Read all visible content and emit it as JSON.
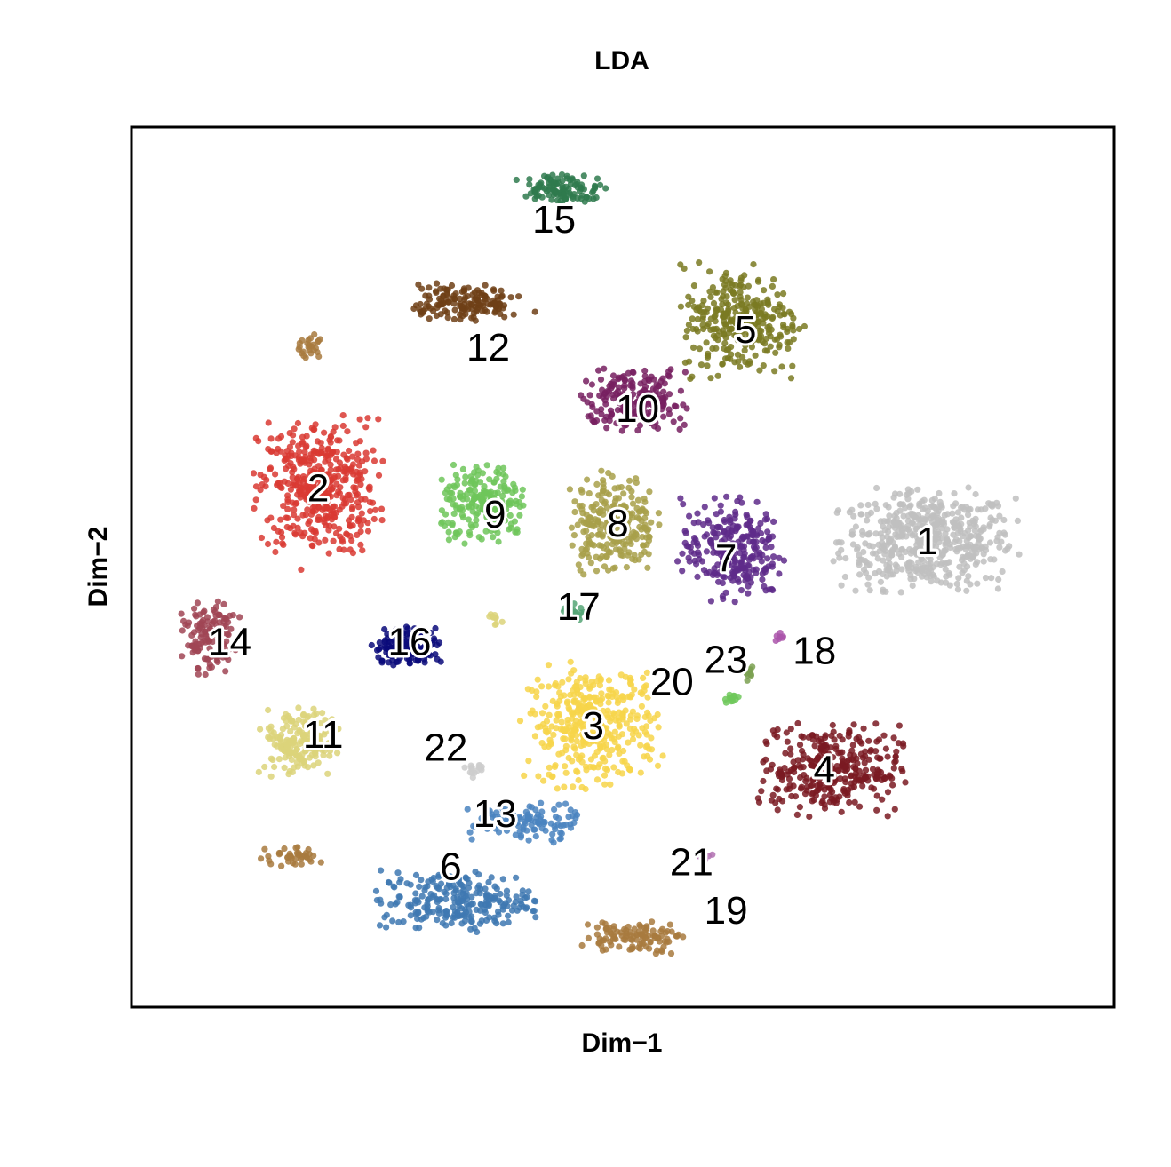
{
  "chart_data": {
    "type": "scatter",
    "title": "LDA",
    "xlabel": "Dim−1",
    "ylabel": "Dim−2",
    "xlim": [
      0,
      100
    ],
    "ylim": [
      0,
      100
    ],
    "grid": false,
    "axes_ticks": false,
    "clusters": [
      {
        "name": "1",
        "color": "#bfbfbf",
        "center": [
          81.0,
          53.0
        ],
        "spread": [
          8.0,
          5.0
        ],
        "n": 520
      },
      {
        "name": "2",
        "color": "#d93a32",
        "center": [
          19.0,
          59.0
        ],
        "spread": [
          5.5,
          7.0
        ],
        "n": 420
      },
      {
        "name": "3",
        "color": "#f7d54a",
        "center": [
          47.0,
          32.0
        ],
        "spread": [
          6.0,
          6.0
        ],
        "n": 380
      },
      {
        "name": "4",
        "color": "#7a1a22",
        "center": [
          71.0,
          27.0
        ],
        "spread": [
          6.5,
          4.5
        ],
        "n": 320
      },
      {
        "name": "5",
        "color": "#7a7a22",
        "center": [
          62.0,
          78.0
        ],
        "spread": [
          5.5,
          5.5
        ],
        "n": 300
      },
      {
        "name": "6",
        "color": "#3e78b2",
        "center": [
          33.0,
          12.0
        ],
        "spread": [
          7.0,
          3.0
        ],
        "n": 240
      },
      {
        "name": "7",
        "color": "#5e2a8a",
        "center": [
          61.0,
          52.0
        ],
        "spread": [
          4.5,
          5.0
        ],
        "n": 260
      },
      {
        "name": "8",
        "color": "#a8a04a",
        "center": [
          49.0,
          55.0
        ],
        "spread": [
          4.0,
          5.0
        ],
        "n": 240
      },
      {
        "name": "9",
        "color": "#6fc55a",
        "center": [
          36.0,
          57.0
        ],
        "spread": [
          4.0,
          4.0
        ],
        "n": 200
      },
      {
        "name": "10",
        "color": "#772060",
        "center": [
          51.0,
          69.0
        ],
        "spread": [
          5.0,
          3.0
        ],
        "n": 200
      },
      {
        "name": "11",
        "color": "#dcd47a",
        "center": [
          17.0,
          30.0
        ],
        "spread": [
          3.5,
          3.5
        ],
        "n": 170
      },
      {
        "name": "12",
        "color": "#6e3f16",
        "center": [
          34.0,
          80.0
        ],
        "spread": [
          5.0,
          2.0
        ],
        "n": 150
      },
      {
        "name": "13",
        "color": "#4a84c0",
        "center": [
          40.0,
          21.0
        ],
        "spread": [
          5.0,
          2.0
        ],
        "n": 110
      },
      {
        "name": "14",
        "color": "#a04555",
        "center": [
          8.0,
          42.0
        ],
        "spread": [
          2.5,
          3.5
        ],
        "n": 120
      },
      {
        "name": "15",
        "color": "#2f7a4e",
        "center": [
          44.0,
          93.0
        ],
        "spread": [
          4.0,
          1.5
        ],
        "n": 110
      },
      {
        "name": "16",
        "color": "#0a0a7a",
        "center": [
          28.0,
          41.0
        ],
        "spread": [
          3.0,
          2.0
        ],
        "n": 140
      },
      {
        "name": "17",
        "color": "#55a575",
        "center": [
          45.0,
          45.0
        ],
        "spread": [
          1.0,
          0.8
        ],
        "n": 20
      },
      {
        "name": "18",
        "color": "#aa55aa",
        "center": [
          66.0,
          42.0
        ],
        "spread": [
          0.5,
          0.6
        ],
        "n": 8
      },
      {
        "name": "19",
        "color": "#a87a3e",
        "center": [
          51.0,
          8.0
        ],
        "spread": [
          4.5,
          1.6
        ],
        "n": 110
      },
      {
        "name": "20",
        "color": "#6ec85a",
        "center": [
          61.0,
          35.0
        ],
        "spread": [
          0.8,
          0.6
        ],
        "n": 12
      },
      {
        "name": "21",
        "color": "#b070b0",
        "center": [
          58.0,
          17.0
        ],
        "spread": [
          1.0,
          0.8
        ],
        "n": 6
      },
      {
        "name": "22",
        "color": "#cccccc",
        "center": [
          35.0,
          27.0
        ],
        "spread": [
          1.0,
          0.8
        ],
        "n": 15
      },
      {
        "name": "23",
        "color": "#7aa050",
        "center": [
          63.0,
          38.0
        ],
        "spread": [
          0.8,
          0.8
        ],
        "n": 8
      }
    ],
    "extra_clusters": [
      {
        "color": "#a87a3e",
        "center": [
          18.0,
          75.0
        ],
        "spread": [
          1.5,
          1.2
        ],
        "n": 25
      },
      {
        "color": "#a87a3e",
        "center": [
          16.0,
          17.0
        ],
        "spread": [
          3.0,
          1.0
        ],
        "n": 40
      },
      {
        "color": "#dcd47a",
        "center": [
          37.0,
          44.0
        ],
        "spread": [
          1.0,
          1.0
        ],
        "n": 10
      }
    ],
    "label_positions": [
      {
        "name": "1",
        "x": 81.0,
        "y": 53.0
      },
      {
        "name": "2",
        "x": 19.0,
        "y": 59.0
      },
      {
        "name": "3",
        "x": 47.0,
        "y": 32.0
      },
      {
        "name": "4",
        "x": 70.5,
        "y": 27.0
      },
      {
        "name": "5",
        "x": 62.5,
        "y": 77.0
      },
      {
        "name": "6",
        "x": 32.5,
        "y": 16.0
      },
      {
        "name": "7",
        "x": 60.5,
        "y": 51.0
      },
      {
        "name": "8",
        "x": 49.5,
        "y": 55.0
      },
      {
        "name": "9",
        "x": 37.0,
        "y": 56.0
      },
      {
        "name": "10",
        "x": 51.5,
        "y": 68.0
      },
      {
        "name": "11",
        "x": 19.5,
        "y": 31.0
      },
      {
        "name": "12",
        "x": 36.3,
        "y": 75.0
      },
      {
        "name": "13",
        "x": 37.0,
        "y": 22.0
      },
      {
        "name": "14",
        "x": 10.0,
        "y": 41.5
      },
      {
        "name": "15",
        "x": 43.0,
        "y": 89.5
      },
      {
        "name": "16",
        "x": 28.3,
        "y": 41.5
      },
      {
        "name": "17",
        "x": 45.5,
        "y": 45.5
      },
      {
        "name": "18",
        "x": 69.5,
        "y": 40.5
      },
      {
        "name": "19",
        "x": 60.5,
        "y": 11.0
      },
      {
        "name": "20",
        "x": 55.0,
        "y": 37.0
      },
      {
        "name": "21",
        "x": 57.0,
        "y": 16.5
      },
      {
        "name": "22",
        "x": 32.0,
        "y": 29.5
      },
      {
        "name": "23",
        "x": 60.5,
        "y": 39.5
      }
    ]
  }
}
